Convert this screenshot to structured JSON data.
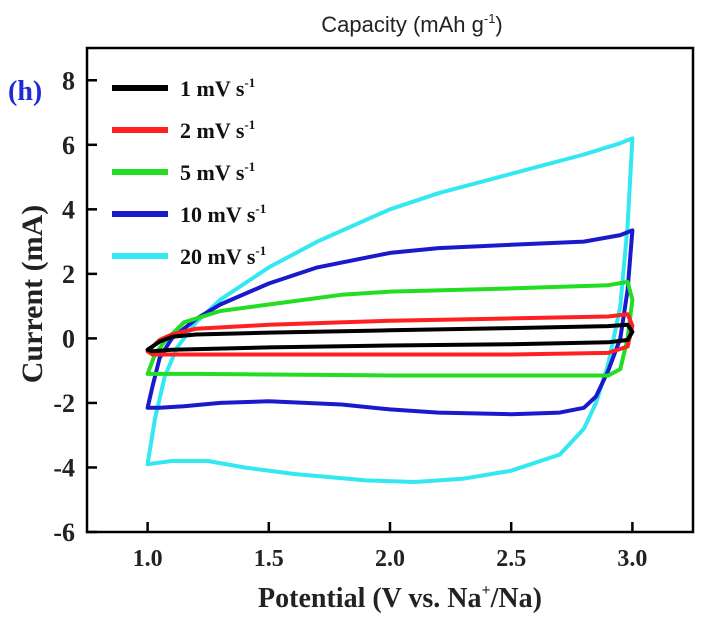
{
  "chart_data": {
    "type": "line",
    "top_title": {
      "base": "Capacity (mAh g",
      "sup": "-1",
      "close": ")"
    },
    "panel_label": "(h)",
    "xlabel": {
      "base": "Potential (V vs. Na",
      "sup": "+",
      "rest": "/Na)"
    },
    "ylabel": "Current (mA)",
    "xlim": [
      0.75,
      3.25
    ],
    "ylim": [
      -6,
      9
    ],
    "x_ticks": [
      1.0,
      1.5,
      2.0,
      2.5,
      3.0
    ],
    "x_tick_labels": [
      "1.0",
      "1.5",
      "2.0",
      "2.5",
      "3.0"
    ],
    "y_ticks": [
      -6,
      -4,
      -2,
      0,
      2,
      4,
      6,
      8
    ],
    "y_tick_labels": [
      "-6",
      "-4",
      "-2",
      "0",
      "2",
      "4",
      "6",
      "8"
    ],
    "legend_position": "top-left",
    "series": [
      {
        "name": "1 mV s-1",
        "legend_base": "1 mV s",
        "legend_sup": "-1",
        "color": "#000000",
        "points": [
          [
            1.0,
            -0.35
          ],
          [
            1.05,
            -0.1
          ],
          [
            1.1,
            0.05
          ],
          [
            1.2,
            0.12
          ],
          [
            1.5,
            0.18
          ],
          [
            2.0,
            0.25
          ],
          [
            2.5,
            0.32
          ],
          [
            2.9,
            0.38
          ],
          [
            2.98,
            0.42
          ],
          [
            3.0,
            0.2
          ],
          [
            2.98,
            -0.05
          ],
          [
            2.9,
            -0.12
          ],
          [
            2.5,
            -0.18
          ],
          [
            2.0,
            -0.22
          ],
          [
            1.5,
            -0.28
          ],
          [
            1.1,
            -0.35
          ],
          [
            1.02,
            -0.4
          ],
          [
            1.0,
            -0.35
          ]
        ]
      },
      {
        "name": "2 mV s-1",
        "legend_base": "2 mV s",
        "legend_sup": "-1",
        "color": "#ff2020",
        "points": [
          [
            1.0,
            -0.4
          ],
          [
            1.05,
            -0.05
          ],
          [
            1.1,
            0.12
          ],
          [
            1.2,
            0.3
          ],
          [
            1.5,
            0.42
          ],
          [
            2.0,
            0.55
          ],
          [
            2.5,
            0.62
          ],
          [
            2.9,
            0.68
          ],
          [
            2.98,
            0.75
          ],
          [
            3.0,
            0.4
          ],
          [
            2.98,
            -0.25
          ],
          [
            2.9,
            -0.45
          ],
          [
            2.5,
            -0.5
          ],
          [
            2.0,
            -0.5
          ],
          [
            1.5,
            -0.5
          ],
          [
            1.1,
            -0.5
          ],
          [
            1.02,
            -0.5
          ],
          [
            1.0,
            -0.4
          ]
        ]
      },
      {
        "name": "5 mV s-1",
        "legend_base": "5 mV s",
        "legend_sup": "-1",
        "color": "#22dd22",
        "points": [
          [
            1.0,
            -1.1
          ],
          [
            1.03,
            -0.5
          ],
          [
            1.07,
            -0.1
          ],
          [
            1.15,
            0.5
          ],
          [
            1.3,
            0.85
          ],
          [
            1.5,
            1.05
          ],
          [
            1.8,
            1.35
          ],
          [
            2.0,
            1.45
          ],
          [
            2.5,
            1.55
          ],
          [
            2.9,
            1.65
          ],
          [
            2.98,
            1.75
          ],
          [
            3.0,
            1.2
          ],
          [
            2.98,
            0.0
          ],
          [
            2.95,
            -0.95
          ],
          [
            2.9,
            -1.15
          ],
          [
            2.5,
            -1.15
          ],
          [
            2.0,
            -1.15
          ],
          [
            1.5,
            -1.12
          ],
          [
            1.2,
            -1.1
          ],
          [
            1.05,
            -1.1
          ],
          [
            1.0,
            -1.1
          ]
        ]
      },
      {
        "name": "10 mV s-1",
        "legend_base": "10 mV s",
        "legend_sup": "-1",
        "color": "#1a1acc",
        "points": [
          [
            1.0,
            -2.15
          ],
          [
            1.02,
            -1.5
          ],
          [
            1.05,
            -0.6
          ],
          [
            1.1,
            0.0
          ],
          [
            1.2,
            0.6
          ],
          [
            1.3,
            1.05
          ],
          [
            1.5,
            1.7
          ],
          [
            1.7,
            2.2
          ],
          [
            2.0,
            2.65
          ],
          [
            2.2,
            2.8
          ],
          [
            2.5,
            2.9
          ],
          [
            2.8,
            3.0
          ],
          [
            2.95,
            3.2
          ],
          [
            3.0,
            3.35
          ],
          [
            2.98,
            1.5
          ],
          [
            2.95,
            0.0
          ],
          [
            2.9,
            -1.0
          ],
          [
            2.85,
            -1.8
          ],
          [
            2.8,
            -2.15
          ],
          [
            2.7,
            -2.3
          ],
          [
            2.5,
            -2.35
          ],
          [
            2.2,
            -2.3
          ],
          [
            2.0,
            -2.2
          ],
          [
            1.8,
            -2.05
          ],
          [
            1.5,
            -1.95
          ],
          [
            1.3,
            -2.0
          ],
          [
            1.15,
            -2.1
          ],
          [
            1.05,
            -2.15
          ],
          [
            1.0,
            -2.15
          ]
        ]
      },
      {
        "name": "20 mV s-1",
        "legend_base": "20 mV s",
        "legend_sup": "-1",
        "color": "#33e8f0",
        "points": [
          [
            1.0,
            -3.9
          ],
          [
            1.03,
            -2.5
          ],
          [
            1.07,
            -1.2
          ],
          [
            1.12,
            -0.3
          ],
          [
            1.2,
            0.5
          ],
          [
            1.3,
            1.2
          ],
          [
            1.5,
            2.2
          ],
          [
            1.7,
            3.0
          ],
          [
            2.0,
            4.0
          ],
          [
            2.2,
            4.5
          ],
          [
            2.5,
            5.1
          ],
          [
            2.8,
            5.7
          ],
          [
            2.95,
            6.05
          ],
          [
            3.0,
            6.2
          ],
          [
            2.98,
            3.5
          ],
          [
            2.95,
            1.0
          ],
          [
            2.9,
            -0.8
          ],
          [
            2.85,
            -2.0
          ],
          [
            2.8,
            -2.8
          ],
          [
            2.7,
            -3.6
          ],
          [
            2.5,
            -4.1
          ],
          [
            2.3,
            -4.35
          ],
          [
            2.1,
            -4.45
          ],
          [
            1.9,
            -4.4
          ],
          [
            1.6,
            -4.2
          ],
          [
            1.4,
            -4.0
          ],
          [
            1.25,
            -3.8
          ],
          [
            1.1,
            -3.8
          ],
          [
            1.0,
            -3.9
          ]
        ]
      }
    ]
  }
}
